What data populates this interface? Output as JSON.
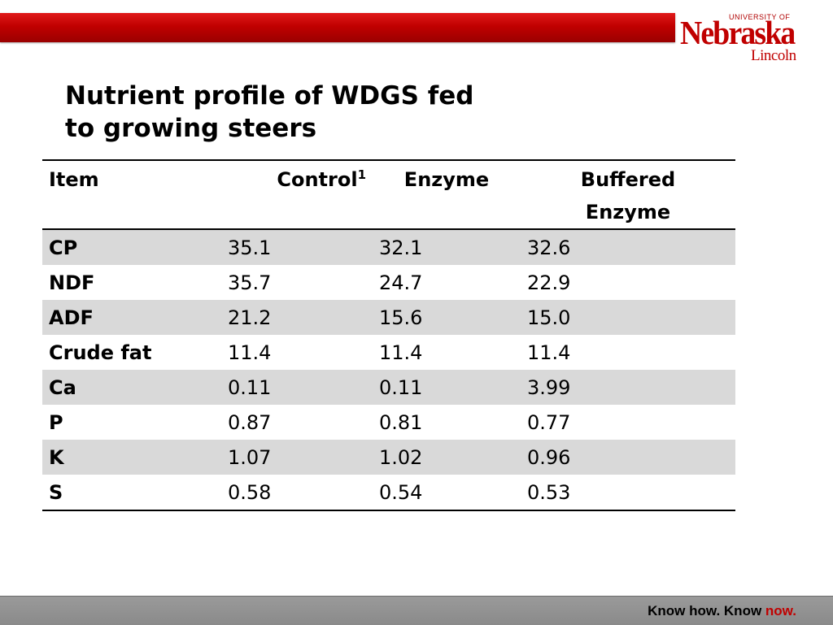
{
  "logo": {
    "university": "UNIVERSITY OF",
    "name": "Nebraska",
    "campus": "Lincoln"
  },
  "title": {
    "line1": "Nutrient profile of WDGS fed",
    "line2": "to growing steers"
  },
  "table": {
    "headers": {
      "item": "Item",
      "control": "Control",
      "control_note": "1",
      "enzyme": "Enzyme",
      "buffered_line1": "Buffered",
      "buffered_line2": "Enzyme"
    },
    "rows": [
      {
        "item": "CP",
        "control": "35.1",
        "enzyme": "32.1",
        "buffered": "32.6"
      },
      {
        "item": "NDF",
        "control": "35.7",
        "enzyme": "24.7",
        "buffered": "22.9"
      },
      {
        "item": "ADF",
        "control": "21.2",
        "enzyme": "15.6",
        "buffered": "15.0"
      },
      {
        "item": "Crude fat",
        "control": "11.4",
        "enzyme": "11.4",
        "buffered": "11.4"
      },
      {
        "item": "Ca",
        "control": "0.11",
        "enzyme": "0.11",
        "buffered": "3.99"
      },
      {
        "item": "P",
        "control": "0.87",
        "enzyme": "0.81",
        "buffered": "0.77"
      },
      {
        "item": "K",
        "control": "1.07",
        "enzyme": "1.02",
        "buffered": "0.96"
      },
      {
        "item": "S",
        "control": "0.58",
        "enzyme": "0.54",
        "buffered": "0.53"
      }
    ]
  },
  "footer": {
    "tagline_main": "Know how. Know ",
    "tagline_accent": "now."
  },
  "colors": {
    "brand_red": "#c00000",
    "row_shade": "#d9d9d9",
    "footer_gray": "#8f8f8f"
  }
}
